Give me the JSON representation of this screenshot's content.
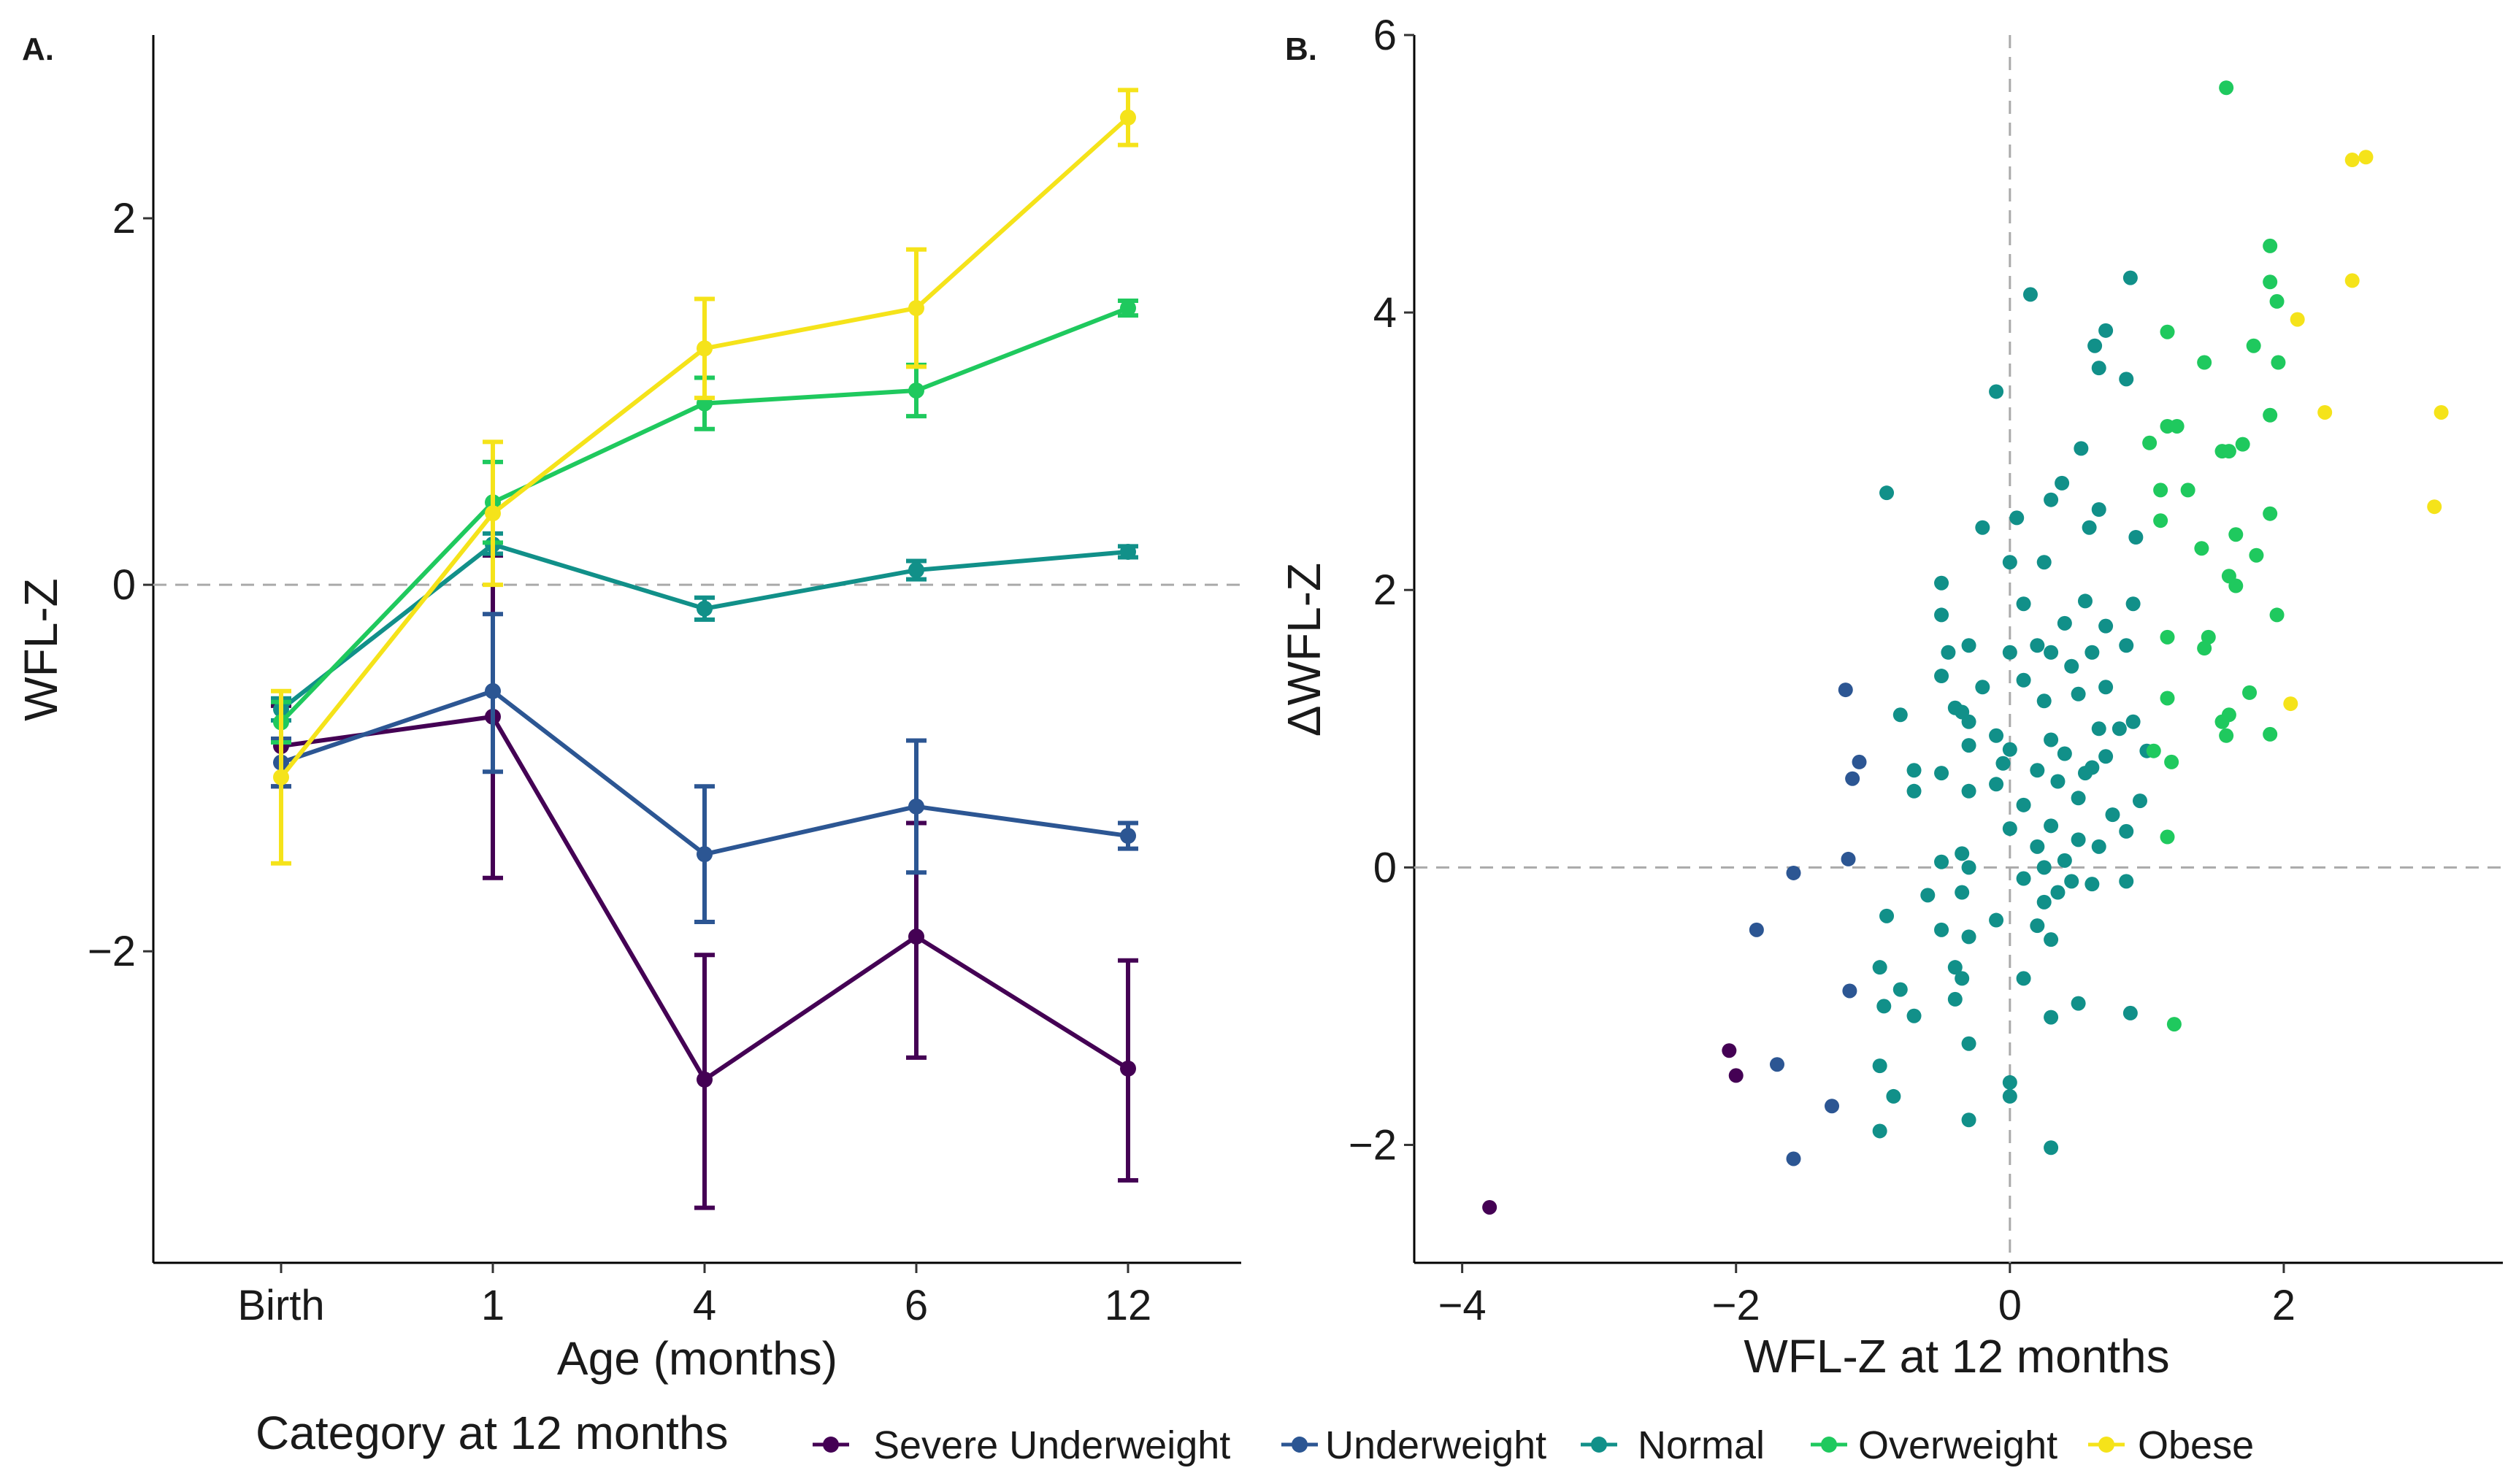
{
  "legend": {
    "title": "Category at 12 months",
    "items": [
      {
        "key": "severe",
        "label": "Severe Underweight",
        "color": "#440154"
      },
      {
        "key": "under",
        "label": "Underweight",
        "color": "#2c5693"
      },
      {
        "key": "normal",
        "label": "Normal",
        "color": "#119089"
      },
      {
        "key": "over",
        "label": "Overweight",
        "color": "#1fc95e"
      },
      {
        "key": "obese",
        "label": "Obese",
        "color": "#f5e31a"
      }
    ]
  },
  "chart_data": [
    {
      "panel_label": "A.",
      "type": "line",
      "xlabel": "Age (months)",
      "ylabel": "WFL-Z",
      "categories": [
        "Birth",
        "1",
        "4",
        "6",
        "12"
      ],
      "ylim": [
        -3.7,
        3.0
      ],
      "yticks": [
        -2,
        0,
        2
      ],
      "ytick_labels": [
        "-2",
        "0",
        "2"
      ],
      "reference_line_y": 0,
      "series": [
        {
          "name": "Severe Underweight",
          "color": "#440154",
          "values": [
            -0.88,
            -0.72,
            -2.7,
            -1.92,
            -2.64
          ],
          "lower": [
            -1.1,
            -1.6,
            -3.4,
            -2.58,
            -3.25
          ],
          "upper": [
            -0.66,
            0.16,
            -2.02,
            -1.3,
            -2.05
          ]
        },
        {
          "name": "Underweight",
          "color": "#2c5693",
          "values": [
            -0.97,
            -0.58,
            -1.47,
            -1.21,
            -1.37
          ],
          "lower": [
            -1.1,
            -1.02,
            -1.84,
            -1.57,
            -1.44
          ],
          "upper": [
            -0.84,
            -0.16,
            -1.1,
            -0.85,
            -1.3
          ]
        },
        {
          "name": "Normal",
          "color": "#119089",
          "values": [
            -0.68,
            0.22,
            -0.13,
            0.08,
            0.18
          ],
          "lower": [
            -0.74,
            0.17,
            -0.19,
            0.03,
            0.15
          ],
          "upper": [
            -0.62,
            0.28,
            -0.07,
            0.13,
            0.21
          ]
        },
        {
          "name": "Overweight",
          "color": "#1fc95e",
          "values": [
            -0.75,
            0.45,
            0.99,
            1.06,
            1.51
          ],
          "lower": [
            -0.86,
            0.23,
            0.85,
            0.92,
            1.47
          ],
          "upper": [
            -0.64,
            0.67,
            1.13,
            1.2,
            1.55
          ]
        },
        {
          "name": "Obese",
          "color": "#f5e31a",
          "values": [
            -1.05,
            0.39,
            1.29,
            1.51,
            2.55
          ],
          "lower": [
            -1.52,
            0.0,
            1.02,
            1.19,
            2.4
          ],
          "upper": [
            -0.58,
            0.78,
            1.56,
            1.83,
            2.7
          ]
        }
      ]
    },
    {
      "panel_label": "B.",
      "type": "scatter",
      "xlabel": "WFL-Z at 12 months",
      "ylabel": "ΔWFL-Z",
      "xlim": [
        -4.35,
        3.6
      ],
      "ylim": [
        -2.85,
        6.0
      ],
      "xticks": [
        -4,
        -2,
        0,
        2
      ],
      "xtick_labels": [
        "-4",
        "-2",
        "0",
        "2"
      ],
      "yticks": [
        -2,
        0,
        2,
        4,
        6
      ],
      "ytick_labels": [
        "-2",
        "0",
        "2",
        "4",
        "6"
      ],
      "reference_line_x": 0,
      "reference_line_y": 0,
      "series": [
        {
          "name": "Severe Underweight",
          "color": "#440154",
          "points": [
            [
              -3.8,
              -2.45
            ],
            [
              -2.05,
              -1.32
            ],
            [
              -2.0,
              -1.5
            ]
          ]
        },
        {
          "name": "Underweight",
          "color": "#2c5693",
          "points": [
            [
              -1.2,
              1.28
            ],
            [
              -1.1,
              0.76
            ],
            [
              -1.15,
              0.64
            ],
            [
              -1.18,
              0.06
            ],
            [
              -1.58,
              -0.04
            ],
            [
              -1.85,
              -0.45
            ],
            [
              -1.17,
              -0.89
            ],
            [
              -1.7,
              -1.42
            ],
            [
              -1.3,
              -1.72
            ],
            [
              -1.58,
              -2.1
            ]
          ]
        },
        {
          "name": "Normal",
          "color": "#119089",
          "points": [
            [
              0.15,
              4.13
            ],
            [
              0.88,
              4.25
            ],
            [
              0.7,
              3.87
            ],
            [
              0.62,
              3.76
            ],
            [
              0.65,
              3.6
            ],
            [
              0.85,
              3.52
            ],
            [
              -0.1,
              3.43
            ],
            [
              -0.9,
              2.7
            ],
            [
              0.52,
              3.02
            ],
            [
              0.38,
              2.77
            ],
            [
              0.3,
              2.65
            ],
            [
              0.65,
              2.58
            ],
            [
              0.05,
              2.52
            ],
            [
              0.58,
              2.45
            ],
            [
              -0.2,
              2.45
            ],
            [
              0.92,
              2.38
            ],
            [
              0.25,
              2.2
            ],
            [
              0.0,
              2.2
            ],
            [
              -0.5,
              2.05
            ],
            [
              0.1,
              1.9
            ],
            [
              0.55,
              1.92
            ],
            [
              0.9,
              1.9
            ],
            [
              0.4,
              1.76
            ],
            [
              0.7,
              1.74
            ],
            [
              -0.5,
              1.82
            ],
            [
              0.2,
              1.6
            ],
            [
              0.0,
              1.55
            ],
            [
              -0.3,
              1.6
            ],
            [
              -0.45,
              1.55
            ],
            [
              0.6,
              1.55
            ],
            [
              0.85,
              1.6
            ],
            [
              0.3,
              1.55
            ],
            [
              0.45,
              1.45
            ],
            [
              -0.5,
              1.38
            ],
            [
              0.1,
              1.35
            ],
            [
              -0.2,
              1.3
            ],
            [
              0.7,
              1.3
            ],
            [
              0.5,
              1.25
            ],
            [
              0.25,
              1.2
            ],
            [
              -0.4,
              1.15
            ],
            [
              -0.35,
              1.12
            ],
            [
              -0.8,
              1.1
            ],
            [
              -0.3,
              1.05
            ],
            [
              0.9,
              1.05
            ],
            [
              0.65,
              1.0
            ],
            [
              0.8,
              1.0
            ],
            [
              -0.1,
              0.95
            ],
            [
              0.3,
              0.92
            ],
            [
              -0.3,
              0.88
            ],
            [
              0.0,
              0.85
            ],
            [
              0.4,
              0.82
            ],
            [
              0.7,
              0.8
            ],
            [
              1.0,
              0.84
            ],
            [
              -0.05,
              0.75
            ],
            [
              0.6,
              0.72
            ],
            [
              0.2,
              0.7
            ],
            [
              0.55,
              0.68
            ],
            [
              -0.7,
              0.7
            ],
            [
              -0.5,
              0.68
            ],
            [
              0.35,
              0.62
            ],
            [
              -0.1,
              0.6
            ],
            [
              -0.7,
              0.55
            ],
            [
              0.5,
              0.5
            ],
            [
              -0.3,
              0.55
            ],
            [
              0.1,
              0.45
            ],
            [
              0.95,
              0.48
            ],
            [
              0.75,
              0.38
            ],
            [
              0.3,
              0.3
            ],
            [
              0.0,
              0.28
            ],
            [
              0.85,
              0.26
            ],
            [
              0.5,
              0.2
            ],
            [
              0.2,
              0.15
            ],
            [
              0.65,
              0.15
            ],
            [
              -0.35,
              0.1
            ],
            [
              0.4,
              0.05
            ],
            [
              -0.5,
              0.04
            ],
            [
              0.25,
              0.0
            ],
            [
              -0.3,
              0.0
            ],
            [
              0.1,
              -0.08
            ],
            [
              0.45,
              -0.1
            ],
            [
              0.85,
              -0.1
            ],
            [
              0.6,
              -0.12
            ],
            [
              0.35,
              -0.18
            ],
            [
              -0.35,
              -0.18
            ],
            [
              0.25,
              -0.25
            ],
            [
              -0.6,
              -0.2
            ],
            [
              -0.9,
              -0.35
            ],
            [
              -0.1,
              -0.38
            ],
            [
              0.2,
              -0.42
            ],
            [
              -0.5,
              -0.45
            ],
            [
              -0.3,
              -0.5
            ],
            [
              0.3,
              -0.52
            ],
            [
              -0.4,
              -0.72
            ],
            [
              0.1,
              -0.8
            ],
            [
              -0.35,
              -0.8
            ],
            [
              -0.95,
              -0.72
            ],
            [
              -0.8,
              -0.88
            ],
            [
              -0.4,
              -0.95
            ],
            [
              -0.92,
              -1.0
            ],
            [
              0.5,
              -0.98
            ],
            [
              0.88,
              -1.05
            ],
            [
              -0.7,
              -1.07
            ],
            [
              0.3,
              -1.08
            ],
            [
              -0.3,
              -1.27
            ],
            [
              -0.95,
              -1.43
            ],
            [
              0.0,
              -1.55
            ],
            [
              0.0,
              -1.65
            ],
            [
              -0.85,
              -1.65
            ],
            [
              -0.3,
              -1.82
            ],
            [
              -0.95,
              -1.9
            ],
            [
              0.3,
              -2.02
            ]
          ]
        },
        {
          "name": "Overweight",
          "color": "#1fc95e",
          "points": [
            [
              1.58,
              5.62
            ],
            [
              1.9,
              4.48
            ],
            [
              1.9,
              4.22
            ],
            [
              1.95,
              4.08
            ],
            [
              1.15,
              3.86
            ],
            [
              1.78,
              3.76
            ],
            [
              1.96,
              3.64
            ],
            [
              1.42,
              3.64
            ],
            [
              1.15,
              3.18
            ],
            [
              1.22,
              3.18
            ],
            [
              1.02,
              3.06
            ],
            [
              1.7,
              3.05
            ],
            [
              1.55,
              3.0
            ],
            [
              1.6,
              3.0
            ],
            [
              1.9,
              3.26
            ],
            [
              1.1,
              2.72
            ],
            [
              1.3,
              2.72
            ],
            [
              1.1,
              2.5
            ],
            [
              1.9,
              2.55
            ],
            [
              1.65,
              2.4
            ],
            [
              1.8,
              2.25
            ],
            [
              1.4,
              2.3
            ],
            [
              1.6,
              2.1
            ],
            [
              1.65,
              2.03
            ],
            [
              1.95,
              1.82
            ],
            [
              1.15,
              1.66
            ],
            [
              1.45,
              1.66
            ],
            [
              1.42,
              1.58
            ],
            [
              1.15,
              1.22
            ],
            [
              1.75,
              1.26
            ],
            [
              1.6,
              1.1
            ],
            [
              1.55,
              1.05
            ],
            [
              1.58,
              0.95
            ],
            [
              1.9,
              0.96
            ],
            [
              1.05,
              0.84
            ],
            [
              1.18,
              0.76
            ],
            [
              1.15,
              0.22
            ],
            [
              1.2,
              -1.13
            ]
          ]
        },
        {
          "name": "Obese",
          "color": "#f5e31a",
          "points": [
            [
              2.5,
              5.1
            ],
            [
              2.6,
              5.12
            ],
            [
              2.5,
              4.23
            ],
            [
              2.1,
              3.95
            ],
            [
              2.3,
              3.28
            ],
            [
              3.15,
              3.28
            ],
            [
              3.1,
              2.6
            ],
            [
              2.05,
              1.18
            ]
          ]
        }
      ]
    }
  ]
}
